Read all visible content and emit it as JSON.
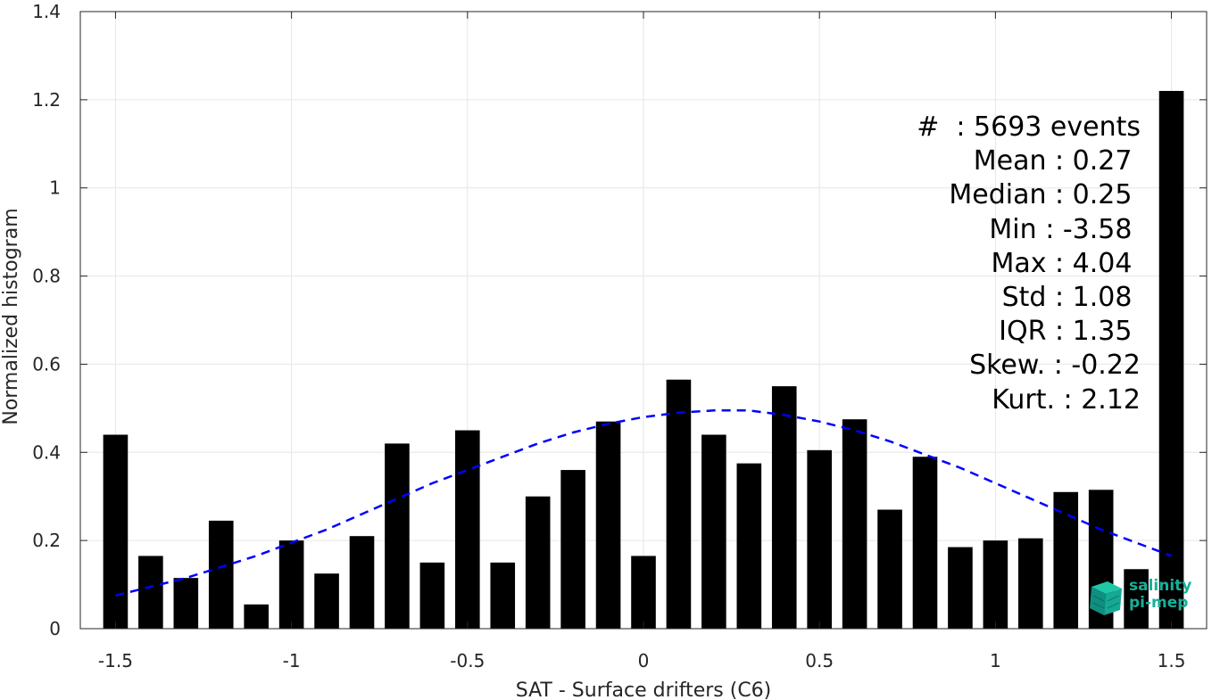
{
  "chart_data": {
    "type": "bar",
    "xlabel": "SAT - Surface drifters (C6)",
    "ylabel": "Normalized histogram",
    "xlim": [
      -1.6,
      1.6
    ],
    "ylim": [
      0,
      1.4
    ],
    "xticks": [
      "-1.5",
      "-1",
      "-0.5",
      "0",
      "0.5",
      "1",
      "1.5"
    ],
    "xtick_values": [
      -1.5,
      -1,
      -0.5,
      0,
      0.5,
      1,
      1.5
    ],
    "yticks": [
      "0",
      "0.2",
      "0.4",
      "0.6",
      "0.8",
      "1",
      "1.2",
      "1.4"
    ],
    "ytick_values": [
      0,
      0.2,
      0.4,
      0.6,
      0.8,
      1.0,
      1.2,
      1.4
    ],
    "grid": true,
    "bar_color": "#000000",
    "fit_color": "#0000ff",
    "bins": [
      -1.5,
      -1.4,
      -1.3,
      -1.2,
      -1.1,
      -1.0,
      -0.9,
      -0.8,
      -0.7,
      -0.6,
      -0.5,
      -0.4,
      -0.3,
      -0.2,
      -0.1,
      0.0,
      0.1,
      0.2,
      0.3,
      0.4,
      0.5,
      0.6,
      0.7,
      0.8,
      0.9,
      1.0,
      1.1,
      1.2,
      1.3,
      1.4,
      1.5
    ],
    "values": [
      0.44,
      0.165,
      0.115,
      0.245,
      0.055,
      0.2,
      0.125,
      0.21,
      0.42,
      0.15,
      0.45,
      0.15,
      0.3,
      0.36,
      0.47,
      0.165,
      0.565,
      0.44,
      0.375,
      0.55,
      0.405,
      0.475,
      0.27,
      0.39,
      0.185,
      0.2,
      0.205,
      0.31,
      0.315,
      0.135,
      1.22
    ],
    "fit": {
      "style": "dashed",
      "mean": 0.27,
      "std": 1.08,
      "x": [
        -1.5,
        -1.4,
        -1.3,
        -1.2,
        -1.1,
        -1.0,
        -0.9,
        -0.8,
        -0.7,
        -0.6,
        -0.5,
        -0.4,
        -0.3,
        -0.2,
        -0.1,
        0.0,
        0.1,
        0.2,
        0.3,
        0.4,
        0.5,
        0.6,
        0.7,
        0.8,
        0.9,
        1.0,
        1.1,
        1.2,
        1.3,
        1.4,
        1.5
      ],
      "y": [
        0.075,
        0.095,
        0.115,
        0.14,
        0.165,
        0.195,
        0.225,
        0.26,
        0.295,
        0.33,
        0.36,
        0.39,
        0.42,
        0.445,
        0.465,
        0.48,
        0.49,
        0.495,
        0.495,
        0.485,
        0.47,
        0.45,
        0.425,
        0.395,
        0.365,
        0.33,
        0.295,
        0.26,
        0.225,
        0.195,
        0.165
      ]
    }
  },
  "stats": [
    "#  : 5693 events",
    "Mean : 0.27 ",
    "Median : 0.25 ",
    "Min : -3.58 ",
    "Max : 4.04 ",
    "Std : 1.08 ",
    "IQR : 1.35 ",
    "Skew. : -0.22",
    "Kurt. : 2.12"
  ],
  "logo": {
    "line1": "salinity",
    "line2": "pi-mep",
    "icon": "cube-icon",
    "color": "#17b09a"
  }
}
